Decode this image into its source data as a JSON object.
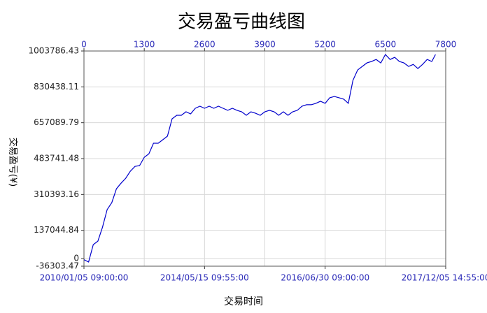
{
  "chart_data": {
    "type": "line",
    "title": "交易盈亏曲线图",
    "x_label": "交易时间",
    "y_label": "交易盈亏(¥)",
    "x": [
      0,
      100,
      200,
      300,
      400,
      500,
      600,
      700,
      800,
      900,
      1000,
      1100,
      1200,
      1300,
      1400,
      1500,
      1600,
      1700,
      1800,
      1900,
      2000,
      2100,
      2200,
      2300,
      2400,
      2500,
      2600,
      2700,
      2800,
      2900,
      3000,
      3100,
      3200,
      3300,
      3400,
      3500,
      3600,
      3700,
      3800,
      3900,
      4000,
      4100,
      4200,
      4300,
      4400,
      4500,
      4600,
      4700,
      4800,
      4900,
      5000,
      5100,
      5200,
      5300,
      5400,
      5500,
      5600,
      5700,
      5800,
      5900,
      6000,
      6100,
      6200,
      6300,
      6400,
      6500,
      6600,
      6700,
      6800,
      6900,
      7000,
      7100,
      7200,
      7300,
      7400,
      7500,
      7580
    ],
    "series": [
      {
        "color": "#0000cc",
        "values": [
          -5000,
          -16000,
          68000,
          85000,
          152000,
          237000,
          271000,
          338000,
          365000,
          389000,
          423000,
          446000,
          450000,
          490000,
          507000,
          558000,
          558000,
          575000,
          592000,
          676000,
          693000,
          693000,
          710000,
          700000,
          727000,
          737000,
          727000,
          737000,
          727000,
          737000,
          727000,
          717000,
          727000,
          717000,
          710000,
          693000,
          710000,
          703000,
          693000,
          710000,
          717000,
          710000,
          693000,
          710000,
          693000,
          710000,
          717000,
          737000,
          744000,
          744000,
          751000,
          761000,
          751000,
          778000,
          784000,
          778000,
          771000,
          751000,
          862000,
          912000,
          929000,
          946000,
          953000,
          963000,
          946000,
          987000,
          963000,
          973000,
          953000,
          946000,
          929000,
          939000,
          919000,
          939000,
          963000,
          953000,
          987000
        ]
      }
    ],
    "xlim": [
      0,
      7800
    ],
    "xticks": [
      0,
      1300,
      2600,
      3900,
      5200,
      6500,
      7800
    ],
    "x_date_ticks": [
      {
        "value": 0,
        "label": "2010/01/05 09:00:00"
      },
      {
        "value": 2600,
        "label": "2014/05/15 09:55:00"
      },
      {
        "value": 5200,
        "label": "2016/06/30 09:00:00"
      },
      {
        "value": 7800,
        "label": "2017/12/05 14:55:00"
      }
    ],
    "ylim": [
      -36303.47,
      1003786.43
    ],
    "yticks": [
      -36303.47,
      0,
      137044.84,
      310393.16,
      483741.48,
      657089.79,
      830438.11,
      1003786.43
    ],
    "grid": true
  }
}
